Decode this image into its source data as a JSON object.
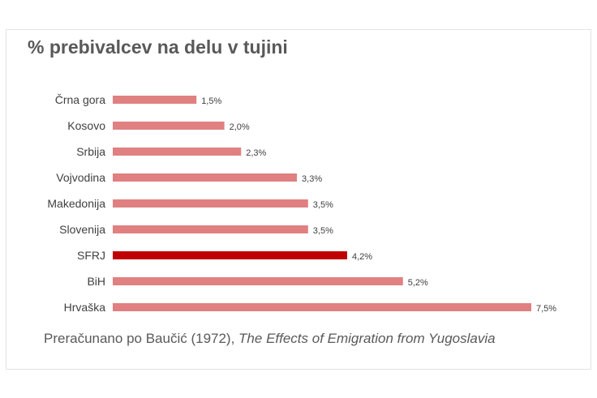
{
  "chart_data": {
    "type": "bar",
    "orientation": "horizontal",
    "title": "% prebivalcev na delu v tujini",
    "categories": [
      "Črna gora",
      "Kosovo",
      "Srbija",
      "Vojvodina",
      "Makedonija",
      "Slovenija",
      "SFRJ",
      "BiH",
      "Hrvaška"
    ],
    "values": [
      1.5,
      2.0,
      2.3,
      3.3,
      3.5,
      3.5,
      4.2,
      5.2,
      7.5
    ],
    "data_labels": [
      "1,5%",
      "2,0%",
      "2,3%",
      "3,3%",
      "3,5%",
      "3,5%",
      "4,2%",
      "5,2%",
      "7,5%"
    ],
    "highlight": "SFRJ",
    "colors": {
      "default": "#e08081",
      "highlight": "#c00000"
    },
    "xlim": [
      0,
      7.5
    ],
    "grid": false,
    "legend": "none"
  },
  "source": {
    "prefix": "Preračunano po Baučić (1972), ",
    "italic": "The Effects of Emigration from Yugoslavia"
  }
}
